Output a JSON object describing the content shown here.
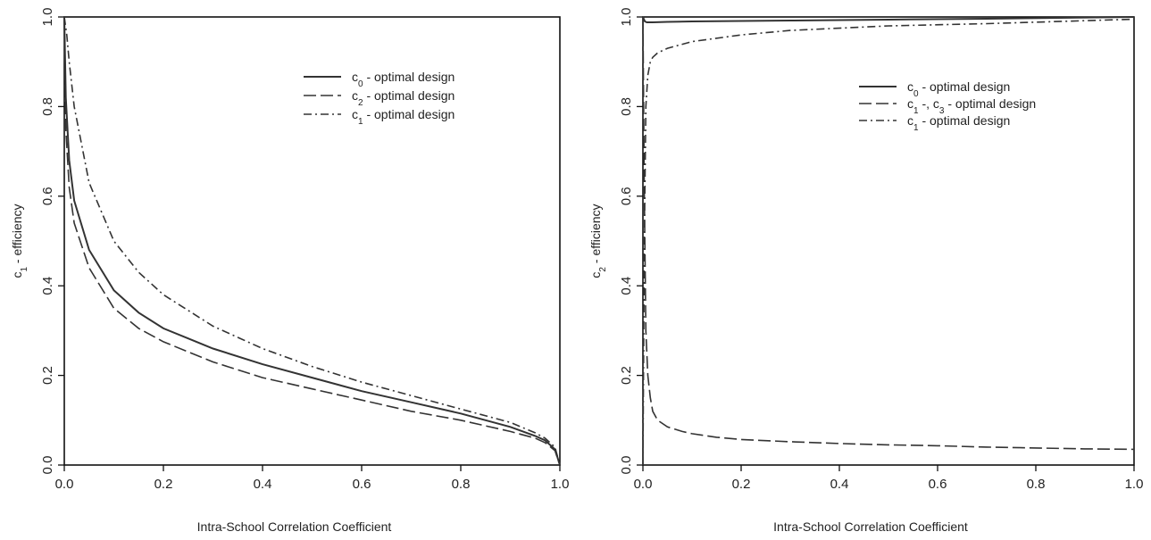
{
  "chart_data": [
    {
      "type": "line",
      "title": "",
      "xlabel": "Intra-School Correlation Coefficient",
      "ylabel": {
        "base": "c",
        "sub": "1",
        "rest": " - efficiency"
      },
      "xlim": [
        0,
        1
      ],
      "ylim": [
        0,
        1
      ],
      "xticks": [
        "0.0",
        "0.2",
        "0.4",
        "0.6",
        "0.8",
        "1.0"
      ],
      "yticks": [
        "0.0",
        "0.2",
        "0.4",
        "0.6",
        "0.8",
        "1.0"
      ],
      "legend_position": "top-right",
      "grid": false,
      "series": [
        {
          "name": "c0 - optimal design",
          "label": {
            "base": "c",
            "sub": "0",
            "rest": " - optimal design"
          },
          "style": "solid",
          "x": [
            0,
            0.003,
            0.01,
            0.02,
            0.05,
            0.1,
            0.15,
            0.2,
            0.3,
            0.4,
            0.5,
            0.6,
            0.7,
            0.8,
            0.9,
            0.95,
            0.97,
            0.99,
            1.0
          ],
          "y": [
            1.0,
            0.82,
            0.68,
            0.59,
            0.48,
            0.39,
            0.34,
            0.305,
            0.26,
            0.225,
            0.195,
            0.165,
            0.14,
            0.115,
            0.085,
            0.065,
            0.055,
            0.035,
            0.0
          ]
        },
        {
          "name": "c2 - optimal design",
          "label": {
            "base": "c",
            "sub": "2",
            "rest": " - optimal design"
          },
          "style": "longdash",
          "x": [
            0,
            0.003,
            0.01,
            0.02,
            0.05,
            0.1,
            0.15,
            0.2,
            0.3,
            0.4,
            0.5,
            0.6,
            0.7,
            0.8,
            0.9,
            0.95,
            0.97,
            0.99,
            1.0
          ],
          "y": [
            1.0,
            0.75,
            0.62,
            0.54,
            0.44,
            0.35,
            0.305,
            0.275,
            0.23,
            0.195,
            0.17,
            0.145,
            0.12,
            0.1,
            0.075,
            0.06,
            0.05,
            0.032,
            0.0
          ]
        },
        {
          "name": "c1 - optimal design",
          "label": {
            "base": "c",
            "sub": "1",
            "rest": " - optimal design"
          },
          "style": "dashdot",
          "x": [
            0,
            0.005,
            0.01,
            0.02,
            0.05,
            0.1,
            0.15,
            0.2,
            0.3,
            0.4,
            0.5,
            0.6,
            0.7,
            0.8,
            0.9,
            0.95,
            0.97,
            0.99,
            1.0
          ],
          "y": [
            1.0,
            0.96,
            0.9,
            0.8,
            0.63,
            0.5,
            0.43,
            0.38,
            0.31,
            0.26,
            0.22,
            0.185,
            0.155,
            0.125,
            0.095,
            0.072,
            0.06,
            0.04,
            0.0
          ]
        }
      ]
    },
    {
      "type": "line",
      "title": "",
      "xlabel": "Intra-School Correlation Coefficient",
      "ylabel": {
        "base": "c",
        "sub": "2",
        "rest": " - efficiency"
      },
      "xlim": [
        0,
        1
      ],
      "ylim": [
        0,
        1
      ],
      "xticks": [
        "0.0",
        "0.2",
        "0.4",
        "0.6",
        "0.8",
        "1.0"
      ],
      "yticks": [
        "0.0",
        "0.2",
        "0.4",
        "0.6",
        "0.8",
        "1.0"
      ],
      "legend_position": "top-right",
      "grid": false,
      "series": [
        {
          "name": "c0 - optimal design",
          "label": {
            "base": "c",
            "sub": "0",
            "rest": " - optimal design"
          },
          "style": "solid",
          "x": [
            0,
            0.004,
            0.008,
            0.02,
            0.05,
            0.1,
            0.2,
            0.3,
            0.5,
            0.7,
            1.0
          ],
          "y": [
            1.0,
            0.99,
            0.988,
            0.988,
            0.989,
            0.99,
            0.991,
            0.992,
            0.994,
            0.996,
            1.0
          ]
        },
        {
          "name": "c1 -, c3 - optimal design",
          "label": {
            "base": "c",
            "sub": "1",
            "rest": " -, c",
            "sub2": "3",
            "rest2": " - optimal design"
          },
          "style": "longdash",
          "x": [
            0,
            0.003,
            0.006,
            0.01,
            0.015,
            0.02,
            0.03,
            0.05,
            0.08,
            0.1,
            0.15,
            0.2,
            0.3,
            0.4,
            0.5,
            0.6,
            0.7,
            0.8,
            0.9,
            1.0
          ],
          "y": [
            1.0,
            0.6,
            0.3,
            0.2,
            0.15,
            0.12,
            0.1,
            0.085,
            0.075,
            0.07,
            0.062,
            0.057,
            0.052,
            0.048,
            0.045,
            0.043,
            0.04,
            0.038,
            0.036,
            0.035
          ]
        },
        {
          "name": "c1 - optimal design",
          "label": {
            "base": "c",
            "sub": "1",
            "rest": " - optimal design"
          },
          "style": "dashdot",
          "x": [
            0,
            0.003,
            0.006,
            0.01,
            0.015,
            0.02,
            0.03,
            0.05,
            0.1,
            0.2,
            0.3,
            0.5,
            0.7,
            1.0
          ],
          "y": [
            0.0,
            0.5,
            0.8,
            0.87,
            0.9,
            0.91,
            0.92,
            0.93,
            0.945,
            0.96,
            0.97,
            0.98,
            0.985,
            0.995
          ]
        }
      ]
    }
  ]
}
